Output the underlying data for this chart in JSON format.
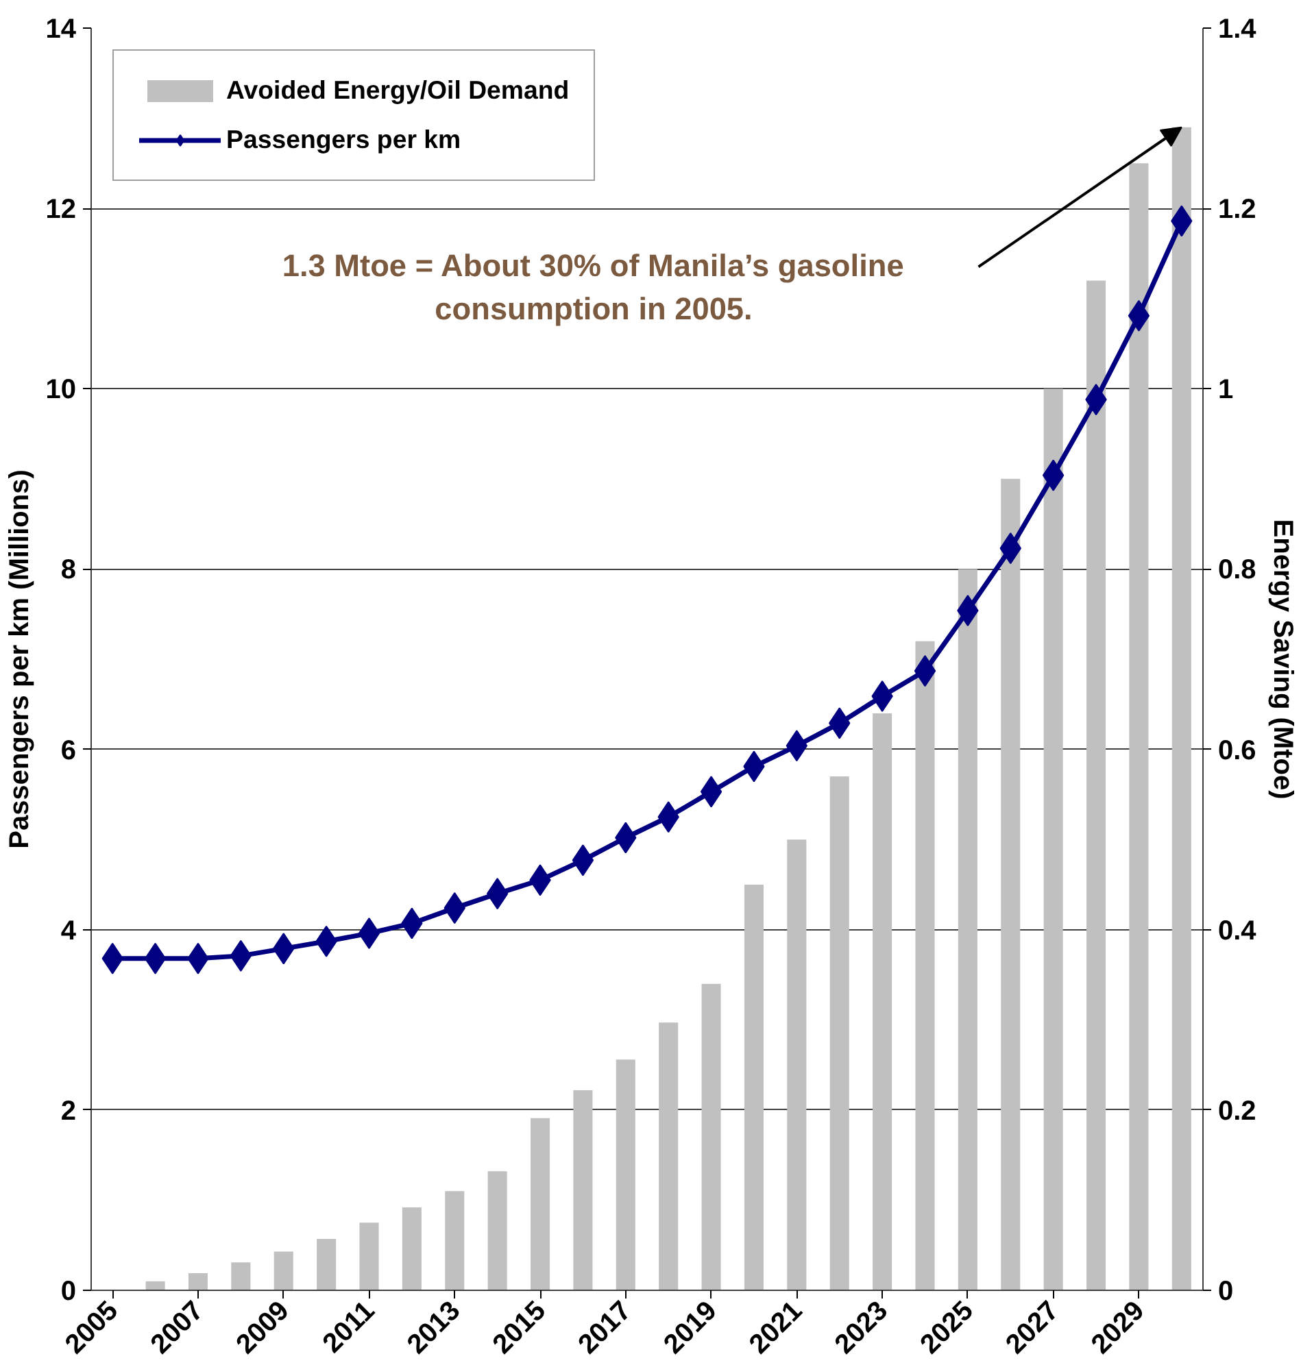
{
  "chart_data": {
    "type": "bar",
    "categories": [
      "2005",
      null,
      "2007",
      null,
      "2009",
      null,
      "2011",
      null,
      "2013",
      null,
      "2015",
      null,
      "2017",
      null,
      "2019",
      null,
      "2021",
      null,
      "2023",
      null,
      "2025",
      null,
      "2027",
      null,
      "2029",
      null
    ],
    "series": [
      {
        "name": "Avoided Energy/Oil Demand",
        "axis": "y2",
        "color": "#c0c0c0",
        "values": [
          0,
          0.01,
          0.019,
          0.031,
          0.043,
          0.057,
          0.075,
          0.092,
          0.11,
          0.132,
          0.191,
          0.222,
          0.256,
          0.297,
          0.34,
          0.45,
          0.5,
          0.57,
          0.64,
          0.72,
          0.8,
          0.9,
          1.0,
          1.12,
          1.25,
          1.29
        ]
      },
      {
        "name": "Passengers per km",
        "type": "line",
        "color": "#000080",
        "marker": "diamond",
        "values": [
          3.68,
          3.68,
          3.68,
          3.71,
          3.79,
          3.87,
          3.96,
          4.07,
          4.24,
          4.4,
          4.55,
          4.77,
          5.02,
          5.25,
          5.53,
          5.81,
          6.04,
          6.29,
          6.59,
          6.87,
          7.54,
          8.23,
          9.04,
          9.88,
          10.81,
          11.86
        ]
      }
    ],
    "ylabel": "Passengers per km (Millions)",
    "y2label": "Energy Saving (Mtoe)",
    "ylim": [
      0,
      14
    ],
    "yticks": [
      0,
      2,
      4,
      6,
      8,
      10,
      12,
      14
    ],
    "y2lim": [
      0,
      1.4
    ],
    "y2ticks": [
      0,
      0.2,
      0.4,
      0.6,
      0.8,
      1,
      1.2,
      1.4
    ],
    "grid": "y",
    "legend": "top left",
    "annotations": [
      "1.3 Mtoe = About 30% of Manila’s gasoline consumption in 2005."
    ]
  }
}
